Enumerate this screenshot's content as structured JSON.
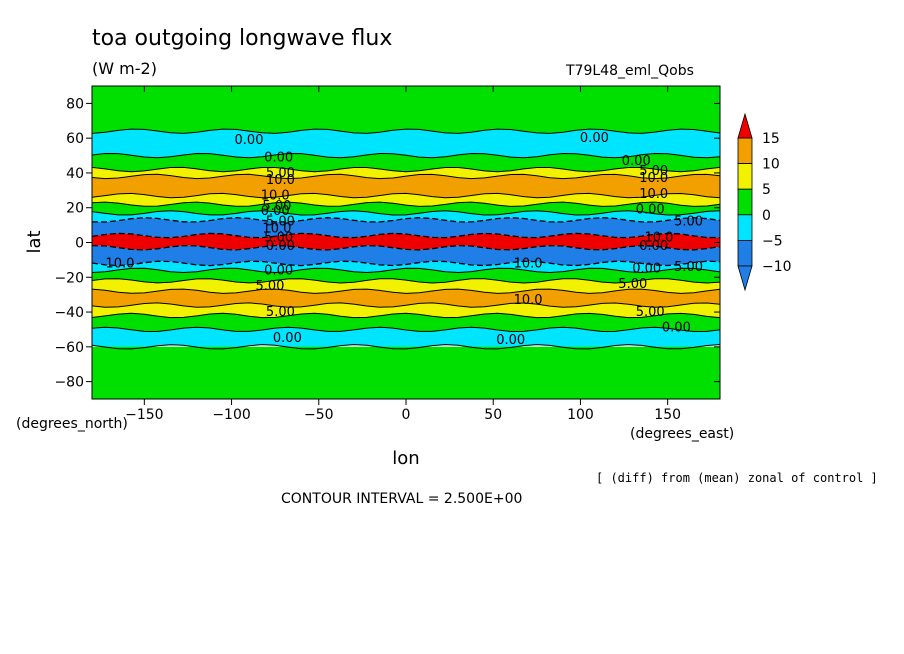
{
  "chart_data": {
    "type": "heatmap",
    "title": "toa outgoing longwave flux",
    "units": "(W m-2)",
    "run_label": "T79L48_eml_Qobs",
    "xlabel": "lon",
    "ylabel": "lat",
    "x_unit_label": "(degrees_east)",
    "y_unit_label": "(degrees_north)",
    "xlim": [
      -180,
      180
    ],
    "ylim": [
      -90,
      90
    ],
    "x_ticks": [
      -150,
      -100,
      -50,
      0,
      50,
      100,
      150
    ],
    "y_ticks": [
      80,
      60,
      40,
      20,
      0,
      -20,
      -40,
      -60,
      -80
    ],
    "colorbar": {
      "levels": [
        -10,
        -5,
        0,
        5,
        10,
        15
      ],
      "tick_labels": [
        "15",
        "10",
        "5",
        "0",
        "-5",
        "-10"
      ],
      "colors": {
        "below_-10": "#1f7fe6",
        "-10_to_-5": "#1f7fe6",
        "-5_to_0": "#00e5ff",
        "0_to_5": "#00e000",
        "5_to_10": "#f2f200",
        "10_to_15": "#f2a000",
        "above_15": "#ee0000"
      },
      "extend": "both"
    },
    "zonal_bands": [
      {
        "lat_from": 90,
        "lat_to": 64,
        "range": "0_to_5"
      },
      {
        "lat_from": 64,
        "lat_to": 50,
        "range": "-5_to_0"
      },
      {
        "lat_from": 50,
        "lat_to": 42,
        "range": "0_to_5"
      },
      {
        "lat_from": 42,
        "lat_to": 38,
        "range": "5_to_10"
      },
      {
        "lat_from": 38,
        "lat_to": 27,
        "range": "10_to_15"
      },
      {
        "lat_from": 27,
        "lat_to": 22,
        "range": "5_to_10"
      },
      {
        "lat_from": 22,
        "lat_to": 17,
        "range": "0_to_5"
      },
      {
        "lat_from": 17,
        "lat_to": 13,
        "range": "-5_to_0"
      },
      {
        "lat_from": 13,
        "lat_to": 4,
        "range": "-10_to_-5"
      },
      {
        "lat_from": 4,
        "lat_to": -3,
        "range": "above_15"
      },
      {
        "lat_from": -3,
        "lat_to": -12,
        "range": "-10_to_-5"
      },
      {
        "lat_from": -12,
        "lat_to": -16,
        "range": "-5_to_0"
      },
      {
        "lat_from": -16,
        "lat_to": -22,
        "range": "0_to_5"
      },
      {
        "lat_from": -22,
        "lat_to": -28,
        "range": "5_to_10"
      },
      {
        "lat_from": -28,
        "lat_to": -36,
        "range": "10_to_15"
      },
      {
        "lat_from": -36,
        "lat_to": -42,
        "range": "5_to_10"
      },
      {
        "lat_from": -42,
        "lat_to": -50,
        "range": "0_to_5"
      },
      {
        "lat_from": -50,
        "lat_to": -60,
        "range": "-5_to_0"
      },
      {
        "lat_from": -60,
        "lat_to": -90,
        "range": "0_to_5"
      }
    ],
    "contour_labels": [
      {
        "text": "0.00",
        "lon": -90,
        "lat": 59
      },
      {
        "text": "0.00",
        "lon": -73,
        "lat": 49
      },
      {
        "text": "5.00",
        "lon": -72,
        "lat": 40
      },
      {
        "text": "10.0",
        "lon": -72,
        "lat": 36
      },
      {
        "text": "10.0",
        "lon": -75,
        "lat": 27
      },
      {
        "text": "5.00",
        "lon": -74,
        "lat": 21
      },
      {
        "text": "0.00",
        "lon": -75,
        "lat": 18
      },
      {
        "text": "5.00",
        "lon": -72,
        "lat": 12
      },
      {
        "text": "10.0",
        "lon": -74,
        "lat": 8
      },
      {
        "text": "5.00",
        "lon": -73,
        "lat": 3
      },
      {
        "text": "0.00",
        "lon": -72,
        "lat": -2
      },
      {
        "text": "10.0",
        "lon": -164,
        "lat": -12
      },
      {
        "text": "0.00",
        "lon": -73,
        "lat": -16
      },
      {
        "text": "5.00",
        "lon": -78,
        "lat": -25
      },
      {
        "text": "5.00",
        "lon": -72,
        "lat": -40
      },
      {
        "text": "0.00",
        "lon": -68,
        "lat": -55
      },
      {
        "text": "10.0",
        "lon": 70,
        "lat": -12
      },
      {
        "text": "10.0",
        "lon": 70,
        "lat": -33
      },
      {
        "text": "0.00",
        "lon": 60,
        "lat": -56
      },
      {
        "text": "0.00",
        "lon": 108,
        "lat": 60
      },
      {
        "text": "0.00",
        "lon": 132,
        "lat": 47
      },
      {
        "text": "5.00",
        "lon": 142,
        "lat": 41
      },
      {
        "text": "10.0",
        "lon": 142,
        "lat": 37
      },
      {
        "text": "10.0",
        "lon": 142,
        "lat": 28
      },
      {
        "text": "0.00",
        "lon": 140,
        "lat": 19
      },
      {
        "text": "5.00",
        "lon": 162,
        "lat": 12
      },
      {
        "text": "10.0",
        "lon": 145,
        "lat": 3
      },
      {
        "text": "0.00",
        "lon": 142,
        "lat": -2
      },
      {
        "text": "5.00",
        "lon": 162,
        "lat": -14
      },
      {
        "text": "0.00",
        "lon": 138,
        "lat": -15
      },
      {
        "text": "5.00",
        "lon": 130,
        "lat": -24
      },
      {
        "text": "5.00",
        "lon": 140,
        "lat": -40
      },
      {
        "text": "0.00",
        "lon": 155,
        "lat": -49
      }
    ],
    "footer_note": "[ (diff) from (mean) zonal of control ]",
    "contour_interval": "CONTOUR INTERVAL = 2.500E+00"
  }
}
